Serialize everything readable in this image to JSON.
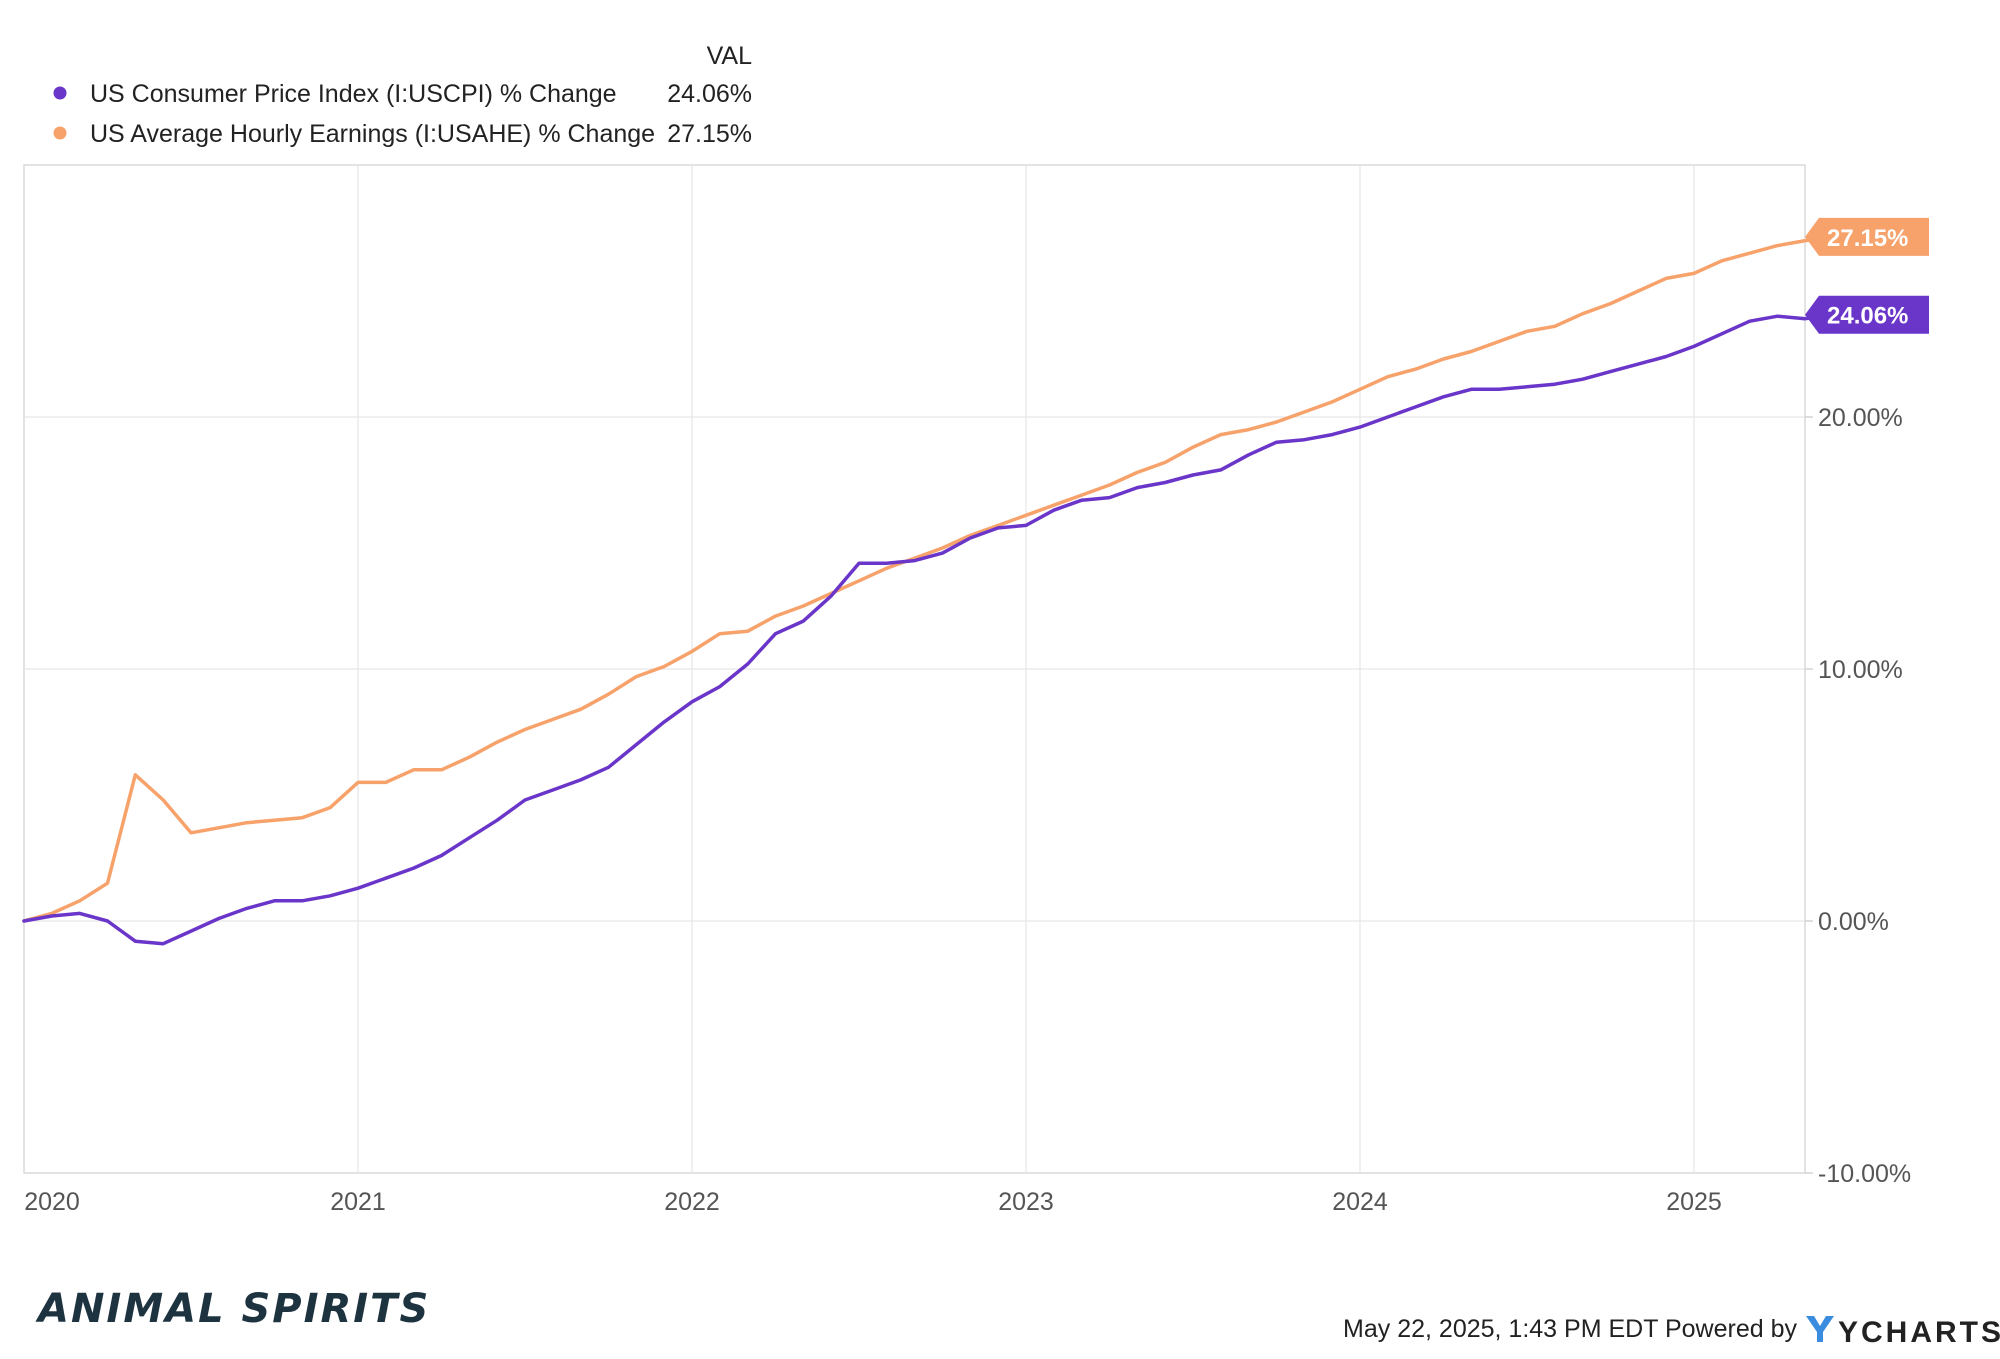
{
  "legend": {
    "header": "VAL",
    "items": [
      {
        "label": "US Consumer Price Index (I:USCPI) % Change",
        "value": "24.06%",
        "color": "#6a35c9"
      },
      {
        "label": "US Average Hourly Earnings (I:USAHE) % Change",
        "value": "27.15%",
        "color": "#f7a26a"
      }
    ]
  },
  "footer": {
    "timestamp": "May 22, 2025, 1:43 PM EDT Powered by",
    "brand": "YCHARTS",
    "logo": "ANIMAL SPIRITS"
  },
  "chart_data": {
    "type": "line",
    "x_start": "2020-01",
    "x_frequency": "monthly",
    "x_tick_labels": [
      "2020",
      "2021",
      "2022",
      "2023",
      "2024",
      "2025"
    ],
    "y_tick_labels": [
      "-10.00%",
      "0.00%",
      "10.00%",
      "20.00%"
    ],
    "y_ticks": [
      -10,
      0,
      10,
      20
    ],
    "ylim": [
      -10,
      30
    ],
    "grid": true,
    "legend_position": "top-left",
    "series": [
      {
        "name": "US Consumer Price Index (I:USCPI) % Change",
        "color": "#6a35c9",
        "end_label": "24.06%",
        "values": [
          0,
          0.2,
          0.3,
          0.0,
          -0.8,
          -0.9,
          -0.4,
          0.1,
          0.5,
          0.8,
          0.8,
          1.0,
          1.3,
          1.7,
          2.1,
          2.6,
          3.3,
          4.0,
          4.8,
          5.2,
          5.6,
          6.1,
          7.0,
          7.9,
          8.7,
          9.3,
          10.2,
          11.4,
          11.9,
          12.9,
          14.2,
          14.2,
          14.3,
          14.6,
          15.2,
          15.6,
          15.7,
          16.3,
          16.7,
          16.8,
          17.2,
          17.4,
          17.7,
          17.9,
          18.5,
          19.0,
          19.1,
          19.3,
          19.6,
          20.0,
          20.4,
          20.8,
          21.1,
          21.1,
          21.2,
          21.3,
          21.5,
          21.8,
          22.1,
          22.4,
          22.8,
          23.3,
          23.8,
          24.0,
          23.9,
          24.06
        ]
      },
      {
        "name": "US Average Hourly Earnings (I:USAHE) % Change",
        "color": "#f7a26a",
        "end_label": "27.15%",
        "values": [
          0,
          0.3,
          0.8,
          1.5,
          5.8,
          4.8,
          3.5,
          3.7,
          3.9,
          4.0,
          4.1,
          4.5,
          5.5,
          5.5,
          6.0,
          6.0,
          6.5,
          7.1,
          7.6,
          8.0,
          8.4,
          9.0,
          9.7,
          10.1,
          10.7,
          11.4,
          11.5,
          12.1,
          12.5,
          13.0,
          13.5,
          14.0,
          14.4,
          14.8,
          15.3,
          15.7,
          16.1,
          16.5,
          16.9,
          17.3,
          17.8,
          18.2,
          18.8,
          19.3,
          19.5,
          19.8,
          20.2,
          20.6,
          21.1,
          21.6,
          21.9,
          22.3,
          22.6,
          23.0,
          23.4,
          23.6,
          24.1,
          24.5,
          25.0,
          25.5,
          25.7,
          26.2,
          26.5,
          26.8,
          27.0,
          27.15
        ]
      }
    ]
  }
}
